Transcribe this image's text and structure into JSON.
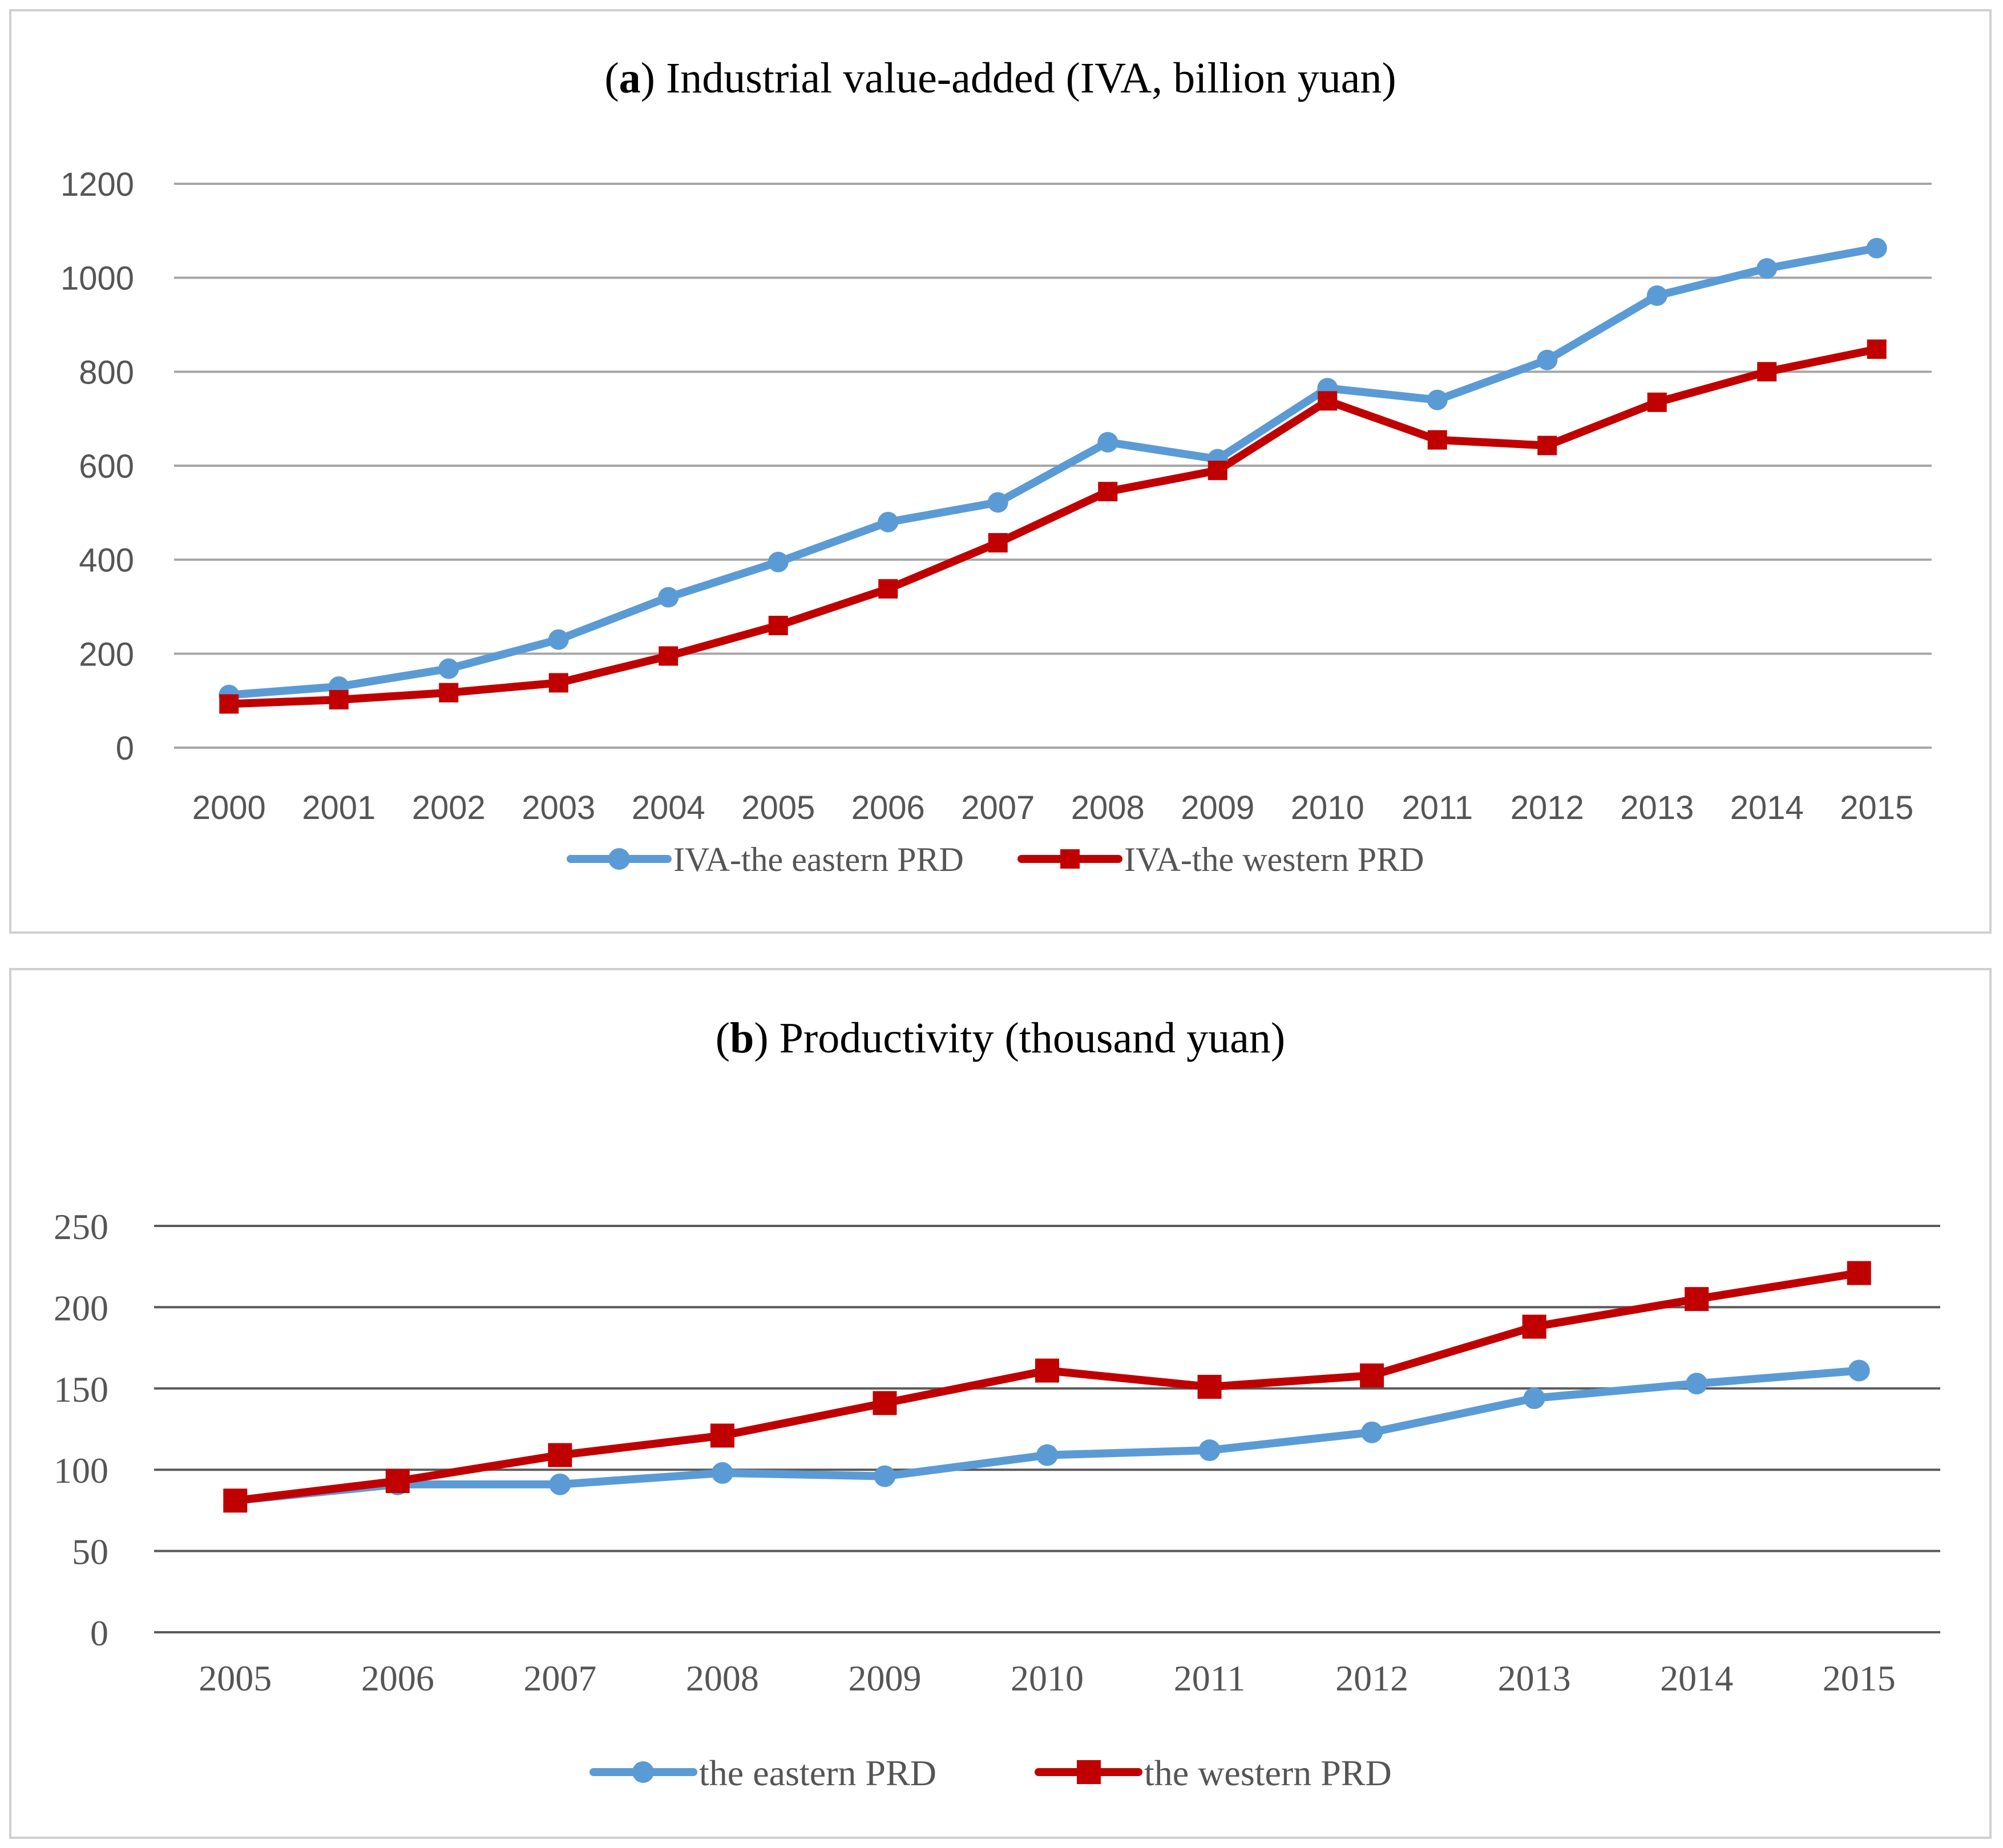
{
  "chart_data": [
    {
      "type": "line",
      "title_prefix": "a",
      "title_rest": ") Industrial value-added (IVA, billion yuan)",
      "categories": [
        "2000",
        "2001",
        "2002",
        "2003",
        "2004",
        "2005",
        "2006",
        "2007",
        "2008",
        "2009",
        "2010",
        "2011",
        "2012",
        "2013",
        "2014",
        "2015"
      ],
      "yticks": [
        "0",
        "200",
        "400",
        "600",
        "800",
        "1000",
        "1200"
      ],
      "ylim": [
        0,
        1200
      ],
      "series": [
        {
          "name": "IVA-the eastern PRD",
          "marker": "circle",
          "color": "#5b9bd5",
          "values": [
            112,
            130,
            168,
            230,
            320,
            395,
            480,
            522,
            650,
            614,
            765,
            740,
            825,
            962,
            1020,
            1063
          ]
        },
        {
          "name": "IVA-the western PRD",
          "marker": "square",
          "color": "#c00000",
          "values": [
            93,
            102,
            117,
            138,
            195,
            260,
            338,
            436,
            545,
            590,
            738,
            655,
            643,
            735,
            800,
            848
          ]
        }
      ],
      "legend": "bottom",
      "grid": true
    },
    {
      "type": "line",
      "title_prefix": "b",
      "title_rest": ") Productivity (thousand yuan)",
      "categories": [
        "2005",
        "2006",
        "2007",
        "2008",
        "2009",
        "2010",
        "2011",
        "2012",
        "2013",
        "2014",
        "2015"
      ],
      "yticks": [
        "0",
        "50",
        "100",
        "150",
        "200",
        "250"
      ],
      "ylim": [
        0,
        250
      ],
      "series": [
        {
          "name": "the eastern PRD",
          "marker": "circle",
          "color": "#5b9bd5",
          "values": [
            81,
            91,
            91,
            98,
            96,
            109,
            112,
            123,
            144,
            153,
            161
          ]
        },
        {
          "name": "the western PRD",
          "marker": "square",
          "color": "#c00000",
          "values": [
            81,
            93,
            109,
            121,
            141,
            161,
            151,
            158,
            188,
            205,
            221
          ]
        }
      ],
      "legend": "bottom",
      "grid": true
    }
  ]
}
